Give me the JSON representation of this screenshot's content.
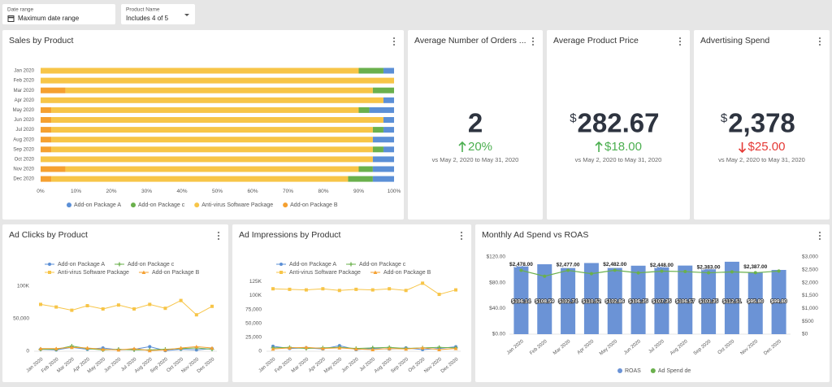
{
  "filters": [
    {
      "label": "Date range",
      "value": "Maximum date range"
    },
    {
      "label": "Product Name",
      "value": "Includes 4 of 5"
    }
  ],
  "kpis": [
    {
      "title": "Average Number of Orders ...",
      "value": "2",
      "change": "20%",
      "direction": "up",
      "comparison": "vs May 2, 2020 to May 31, 2020"
    },
    {
      "title": "Average Product Price",
      "prefix": "$",
      "value": "282.67",
      "change": "$18.00",
      "direction": "up",
      "comparison": "vs May 2, 2020 to May 31, 2020"
    },
    {
      "title": "Advertising Spend",
      "prefix": "$",
      "value": "2,378",
      "change": "$25.00",
      "direction": "down",
      "comparison": "vs May 2, 2020 to May 31, 2020"
    }
  ],
  "chart_data": [
    {
      "type": "stackedbar",
      "title": "Sales by Product",
      "categories": [
        "Jan 2020",
        "Feb 2020",
        "Mar 2020",
        "Apr 2020",
        "May 2020",
        "Jun 2020",
        "Jul 2020",
        "Aug 2020",
        "Sep 2020",
        "Oct 2020",
        "Nov 2020",
        "Dec 2020"
      ],
      "series": [
        {
          "name": "Add-on Package A",
          "color": "#5b8fd6",
          "values": [
            3,
            0,
            0,
            3,
            7,
            3,
            3,
            6,
            3,
            6,
            6,
            6
          ]
        },
        {
          "name": "Add-on Package c",
          "color": "#6ab04c",
          "values": [
            7,
            0,
            6,
            0,
            3,
            0,
            3,
            0,
            3,
            0,
            4,
            7
          ]
        },
        {
          "name": "Anti-virus Software Package",
          "color": "#f7c548",
          "values": [
            90,
            100,
            87,
            97,
            87,
            94,
            91,
            91,
            91,
            94,
            83,
            84
          ]
        },
        {
          "name": "Add-on Package B",
          "color": "#f5a030",
          "values": [
            0,
            0,
            7,
            0,
            3,
            3,
            3,
            3,
            3,
            0,
            7,
            3
          ]
        }
      ],
      "xlim": [
        0,
        100
      ],
      "xticks": [
        {
          "value": 0,
          "label": "0%"
        },
        {
          "value": 10,
          "label": "10%"
        },
        {
          "value": 20,
          "label": "20%"
        },
        {
          "value": 30,
          "label": "30%"
        },
        {
          "value": 40,
          "label": "40%"
        },
        {
          "value": 50,
          "label": "50%"
        },
        {
          "value": 60,
          "label": "60%"
        },
        {
          "value": 70,
          "label": "70%"
        },
        {
          "value": 80,
          "label": "80%"
        },
        {
          "value": 90,
          "label": "90%"
        },
        {
          "value": 100,
          "label": "100%"
        }
      ],
      "legend": "bottom"
    },
    {
      "type": "line",
      "title": "Ad Clicks by Product",
      "categories": [
        "Jan 2020",
        "Feb 2020",
        "Mar 2020",
        "Apr 2020",
        "May 2020",
        "Jun 2020",
        "Jul 2020",
        "Aug 2020",
        "Sep 2020",
        "Oct 2020",
        "Nov 2020",
        "Dec 2020"
      ],
      "series": [
        {
          "name": "Add-on Package A",
          "color": "#5b8fd6",
          "marker": "circle",
          "values": [
            3000,
            2000,
            6000,
            3000,
            5000,
            2000,
            3000,
            7000,
            1000,
            3000,
            2000,
            4000
          ]
        },
        {
          "name": "Add-on Package c",
          "color": "#6ab04c",
          "marker": "plus",
          "values": [
            3000,
            3000,
            8000,
            4000,
            2000,
            3000,
            2000,
            2000,
            3000,
            4000,
            5000,
            3000
          ]
        },
        {
          "name": "Anti-virus Software Package",
          "color": "#f7c548",
          "marker": "square",
          "values": [
            72000,
            68000,
            63000,
            70000,
            65000,
            71000,
            65000,
            72000,
            66000,
            78000,
            56000,
            69000
          ]
        },
        {
          "name": "Add-on Package B",
          "color": "#f5a030",
          "marker": "triangle",
          "values": [
            4000,
            4000,
            6000,
            5000,
            3000,
            2000,
            4000,
            1000,
            2000,
            5000,
            7000,
            5000
          ]
        }
      ],
      "ylim": [
        0,
        120000
      ],
      "yticks": [
        0,
        {
          "value": 50000,
          "label": "50,000"
        },
        {
          "value": 100000,
          "label": "100K"
        }
      ],
      "legend": "top"
    },
    {
      "type": "line",
      "title": "Ad Impressions by Product",
      "categories": [
        "Jan 2020",
        "Feb 2020",
        "Mar 2020",
        "Apr 2020",
        "May 2020",
        "Jun 2020",
        "Jul 2020",
        "Aug 2020",
        "Sep 2020",
        "Oct 2020",
        "Nov 2020",
        "Dec 2020"
      ],
      "series": [
        {
          "name": "Add-on Package A",
          "color": "#5b8fd6",
          "marker": "circle",
          "values": [
            9000,
            5000,
            6000,
            4000,
            10000,
            3000,
            5000,
            4000,
            6000,
            3000,
            5000,
            8000
          ]
        },
        {
          "name": "Add-on Package c",
          "color": "#6ab04c",
          "marker": "plus",
          "values": [
            6000,
            7000,
            5000,
            6000,
            7000,
            5000,
            6000,
            7000,
            5000,
            6000,
            7000,
            6000
          ]
        },
        {
          "name": "Anti-virus Software Package",
          "color": "#f7c548",
          "marker": "square",
          "values": [
            112000,
            111000,
            110000,
            112000,
            109000,
            111000,
            110000,
            112000,
            109000,
            122000,
            102000,
            110000
          ]
        },
        {
          "name": "Add-on Package B",
          "color": "#f5a030",
          "marker": "triangle",
          "values": [
            4000,
            6000,
            7000,
            5000,
            6000,
            4000,
            3000,
            5000,
            4000,
            6000,
            3000,
            5000
          ]
        }
      ],
      "ylim": [
        0,
        140000
      ],
      "yticks": [
        0,
        {
          "value": 25000,
          "label": "25,000"
        },
        {
          "value": 50000,
          "label": "50,000"
        },
        {
          "value": 75000,
          "label": "75,000"
        },
        {
          "value": 100000,
          "label": "100K"
        },
        {
          "value": 125000,
          "label": "125K"
        }
      ],
      "legend": "top"
    },
    {
      "type": "combo",
      "title": "Monthly Ad Spend vs ROAS",
      "categories": [
        "Jan 2020",
        "Feb 2020",
        "Mar 2020",
        "Apr 2020",
        "May 2020",
        "Jun 2020",
        "Jul 2020",
        "Aug 2020",
        "Sep 2020",
        "Oct 2020",
        "Nov 2020",
        "Dec 2020"
      ],
      "series": [
        {
          "name": "ROAS",
          "color": "#6b93d6",
          "mark": "bar",
          "axis": "y",
          "values": [
            106.14,
            108.59,
            102.74,
            110.52,
            102.86,
            106.35,
            107.35,
            106.57,
            103.35,
            112.51,
            95.8,
            99.8
          ],
          "value_labels": [
            "$106.14",
            "$108.59",
            "$102.74",
            "$110.52",
            "$102.86",
            "$106.35",
            "$107.35",
            "$106.57",
            "$103.35",
            "$112.51",
            "$95.80",
            "$99.80"
          ]
        },
        {
          "name": "Ad Spend de",
          "color": "#6ab04c",
          "mark": "line",
          "axis": "y2",
          "values": [
            2478,
            2250,
            2477,
            2350,
            2482,
            2380,
            2448,
            2430,
            2383,
            2420,
            2387,
            2450
          ],
          "value_labels": [
            "$2,478.00",
            null,
            "$2,477.00",
            null,
            "$2,482.00",
            null,
            "$2,448.00",
            null,
            "$2,383.00",
            null,
            "$2,387.00",
            null
          ]
        }
      ],
      "ylim": [
        0,
        120
      ],
      "yticks": [
        {
          "value": 0,
          "label": "$0.00"
        },
        {
          "value": 40,
          "label": "$40.00"
        },
        {
          "value": 80,
          "label": "$80.00"
        },
        {
          "value": 120,
          "label": "$120.00"
        }
      ],
      "y2lim": [
        0,
        3000
      ],
      "y2ticks": [
        {
          "value": 0,
          "label": "$0"
        },
        {
          "value": 500,
          "label": "$500"
        },
        {
          "value": 1000,
          "label": "$1,000"
        },
        {
          "value": 1500,
          "label": "$1,500"
        },
        {
          "value": 2000,
          "label": "$2,000"
        },
        {
          "value": 2500,
          "label": "$2,500"
        },
        {
          "value": 3000,
          "label": "$3,000"
        }
      ],
      "legend": "bottom"
    }
  ]
}
